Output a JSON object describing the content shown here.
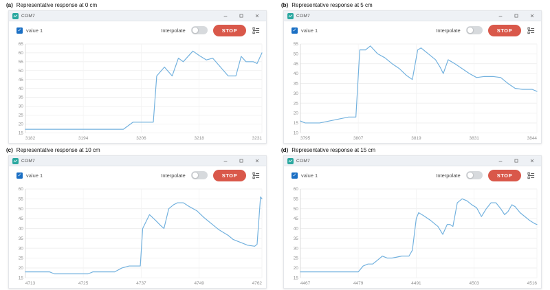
{
  "colors": {
    "line": "#72b1de",
    "stop_bg": "#d9584a",
    "checkbox_bg": "#1a6fc4",
    "titlebar_bg": "#eef1f5",
    "toggle_track": "#d7dadd",
    "app_icon_bg": "#2aa8a0"
  },
  "panels": [
    {
      "caption_label": "(a)",
      "caption_text": "Representative response at 0 cm",
      "window": {
        "title": "COM7",
        "series_label": "value 1",
        "interpolate_label": "Interpolate",
        "stop_label": "STOP"
      },
      "chart_data": {
        "type": "line",
        "series_name": "value 1",
        "xlim": [
          3182,
          3231
        ],
        "ylim": [
          15,
          65
        ],
        "ytick_step": 5,
        "xticks": [
          3182,
          3194,
          3206,
          3218,
          3231
        ],
        "grid": true,
        "points": [
          [
            3182,
            17
          ],
          [
            3202.3,
            17
          ],
          [
            3204.3,
            21
          ],
          [
            3208.5,
            21
          ],
          [
            3209.2,
            47
          ],
          [
            3210.8,
            52
          ],
          [
            3212.4,
            47
          ],
          [
            3213.7,
            57
          ],
          [
            3214.7,
            55
          ],
          [
            3216.7,
            61
          ],
          [
            3218,
            58.5
          ],
          [
            3219.5,
            56
          ],
          [
            3220.8,
            57
          ],
          [
            3224,
            47
          ],
          [
            3225.6,
            47
          ],
          [
            3226.7,
            58
          ],
          [
            3227.7,
            55
          ],
          [
            3229.2,
            55
          ],
          [
            3230,
            54
          ],
          [
            3231,
            60
          ]
        ]
      }
    },
    {
      "caption_label": "(b)",
      "caption_text": "Representative response at 5 cm",
      "window": {
        "title": "COM7",
        "series_label": "value 1",
        "interpolate_label": "Interpolate",
        "stop_label": "STOP"
      },
      "chart_data": {
        "type": "line",
        "series_name": "value 1",
        "xlim": [
          3795,
          3844
        ],
        "ylim": [
          10,
          55
        ],
        "ytick_step": 5,
        "xticks": [
          3795,
          3807,
          3819,
          3831,
          3844
        ],
        "grid": true,
        "points": [
          [
            3795,
            16
          ],
          [
            3796,
            15
          ],
          [
            3799,
            15
          ],
          [
            3801,
            16
          ],
          [
            3803,
            17
          ],
          [
            3805,
            18
          ],
          [
            3806.5,
            18
          ],
          [
            3807.3,
            52
          ],
          [
            3808.5,
            52
          ],
          [
            3809.5,
            54
          ],
          [
            3811,
            50
          ],
          [
            3812.5,
            48
          ],
          [
            3814,
            45
          ],
          [
            3815.5,
            42.5
          ],
          [
            3817,
            39
          ],
          [
            3818.2,
            37
          ],
          [
            3819.3,
            52
          ],
          [
            3820,
            53
          ],
          [
            3821.5,
            50
          ],
          [
            3823,
            47
          ],
          [
            3824,
            43
          ],
          [
            3824.6,
            40
          ],
          [
            3825.6,
            47
          ],
          [
            3827,
            45
          ],
          [
            3828.5,
            42.5
          ],
          [
            3830,
            40
          ],
          [
            3831.5,
            38
          ],
          [
            3833,
            38.5
          ],
          [
            3835,
            38.5
          ],
          [
            3836.5,
            38
          ],
          [
            3838,
            35
          ],
          [
            3839.5,
            32.5
          ],
          [
            3841,
            32
          ],
          [
            3843,
            32
          ],
          [
            3844,
            31
          ]
        ]
      }
    },
    {
      "caption_label": "(c)",
      "caption_text": "Representative response at 10 cm",
      "window": {
        "title": "COM7",
        "series_label": "value 1",
        "interpolate_label": "Interpolate",
        "stop_label": "STOP"
      },
      "chart_data": {
        "type": "line",
        "series_name": "value 1",
        "xlim": [
          4713,
          4762
        ],
        "ylim": [
          15,
          60
        ],
        "ytick_step": 5,
        "xticks": [
          4713,
          4725,
          4737,
          4749,
          4762
        ],
        "grid": true,
        "points": [
          [
            4713,
            18
          ],
          [
            4718,
            18
          ],
          [
            4719,
            17
          ],
          [
            4726,
            17
          ],
          [
            4727,
            18
          ],
          [
            4731.5,
            18
          ],
          [
            4733,
            20
          ],
          [
            4734.5,
            21
          ],
          [
            4736.8,
            21
          ],
          [
            4737.3,
            40
          ],
          [
            4738.7,
            47
          ],
          [
            4740,
            44
          ],
          [
            4741,
            41.5
          ],
          [
            4741.7,
            40
          ],
          [
            4742.7,
            50
          ],
          [
            4743.7,
            52
          ],
          [
            4744.5,
            53
          ],
          [
            4745.7,
            53
          ],
          [
            4747,
            51
          ],
          [
            4748.5,
            49
          ],
          [
            4750,
            45.5
          ],
          [
            4751.5,
            42.5
          ],
          [
            4753,
            39.5
          ],
          [
            4754,
            38
          ],
          [
            4755,
            36.5
          ],
          [
            4756,
            34.5
          ],
          [
            4757,
            33.5
          ],
          [
            4758,
            32.5
          ],
          [
            4759,
            31.5
          ],
          [
            4760.5,
            31
          ],
          [
            4761,
            32
          ],
          [
            4761.7,
            56
          ],
          [
            4762,
            55
          ]
        ]
      }
    },
    {
      "caption_label": "(d)",
      "caption_text": "Representative response at 15 cm",
      "window": {
        "title": "COM7",
        "series_label": "value 1",
        "interpolate_label": "Interpolate",
        "stop_label": "STOP"
      },
      "chart_data": {
        "type": "line",
        "series_name": "value 1",
        "xlim": [
          4467,
          4516
        ],
        "ylim": [
          15,
          60
        ],
        "ytick_step": 5,
        "xticks": [
          4467,
          4479,
          4491,
          4503,
          4516
        ],
        "grid": true,
        "points": [
          [
            4467,
            18
          ],
          [
            4479,
            18
          ],
          [
            4480,
            21
          ],
          [
            4481,
            22
          ],
          [
            4482,
            22
          ],
          [
            4483,
            24
          ],
          [
            4484,
            26
          ],
          [
            4485,
            25
          ],
          [
            4486,
            25
          ],
          [
            4487,
            25.5
          ],
          [
            4488,
            26
          ],
          [
            4489.5,
            26
          ],
          [
            4490.2,
            29
          ],
          [
            4491,
            45
          ],
          [
            4491.5,
            48
          ],
          [
            4492.5,
            46.5
          ],
          [
            4494,
            44
          ],
          [
            4495.5,
            41
          ],
          [
            4496.5,
            37
          ],
          [
            4497.4,
            42
          ],
          [
            4498,
            42
          ],
          [
            4498.6,
            41
          ],
          [
            4499.5,
            53
          ],
          [
            4500.5,
            55
          ],
          [
            4501.5,
            54
          ],
          [
            4502.5,
            52
          ],
          [
            4503.5,
            50.5
          ],
          [
            4504.5,
            46
          ],
          [
            4505.5,
            50
          ],
          [
            4506.5,
            53
          ],
          [
            4507.5,
            53
          ],
          [
            4508.5,
            50
          ],
          [
            4509.3,
            47
          ],
          [
            4510,
            48.5
          ],
          [
            4510.8,
            52
          ],
          [
            4511.5,
            51
          ],
          [
            4512.5,
            48
          ],
          [
            4513.5,
            46
          ],
          [
            4514.5,
            44
          ],
          [
            4515.5,
            42.5
          ],
          [
            4516,
            42
          ]
        ]
      }
    }
  ]
}
